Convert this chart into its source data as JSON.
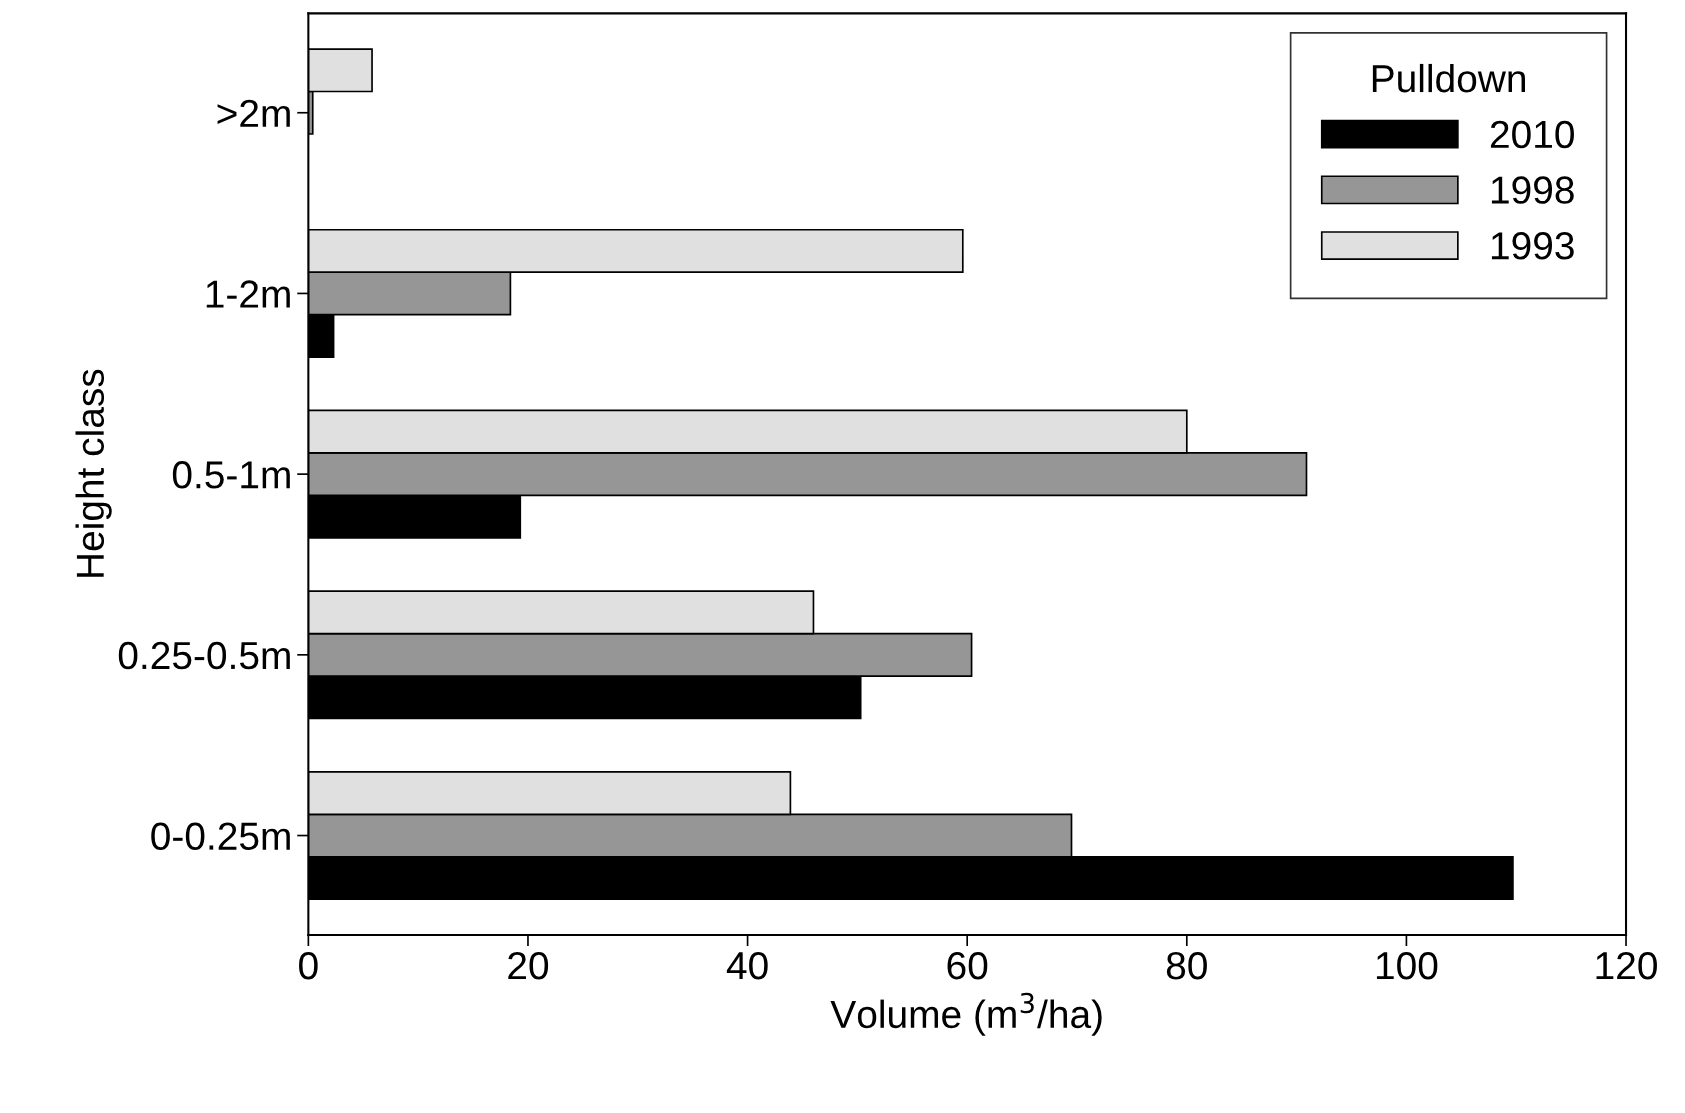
{
  "chart_data": {
    "type": "bar",
    "orientation": "horizontal",
    "xlabel": "Volume (m$^{3}$/ha)",
    "ylabel": "Height class",
    "legend_title": "Pulldown",
    "legend": "top right",
    "grid": false,
    "categories": [
      ">2m",
      "1-2m",
      "0.5-1m",
      "0.25-0.5m",
      "0-0.25m"
    ],
    "series": [
      {
        "name": "2010",
        "color": "#000000",
        "values": [
          null,
          2.3,
          19.3,
          50.3,
          109.7
        ]
      },
      {
        "name": "1998",
        "color": "#969696",
        "values": [
          0.4,
          18.4,
          90.9,
          60.4,
          69.5
        ]
      },
      {
        "name": "1993",
        "color": "#e0e0e0",
        "values": [
          5.8,
          59.6,
          80.0,
          46.0,
          43.9
        ]
      }
    ],
    "xlim": [
      0,
      120
    ],
    "xticks": [
      0,
      20,
      40,
      60,
      80,
      100,
      120
    ]
  }
}
